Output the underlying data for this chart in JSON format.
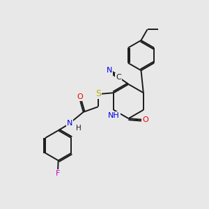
{
  "background_color": "#e8e8e8",
  "bond_color": "#1a1a1a",
  "atom_colors": {
    "N": "#0000ee",
    "O": "#ee0000",
    "S": "#bbaa00",
    "F": "#cc00cc",
    "C": "#1a1a1a"
  },
  "figsize": [
    3.0,
    3.0
  ],
  "dpi": 100
}
